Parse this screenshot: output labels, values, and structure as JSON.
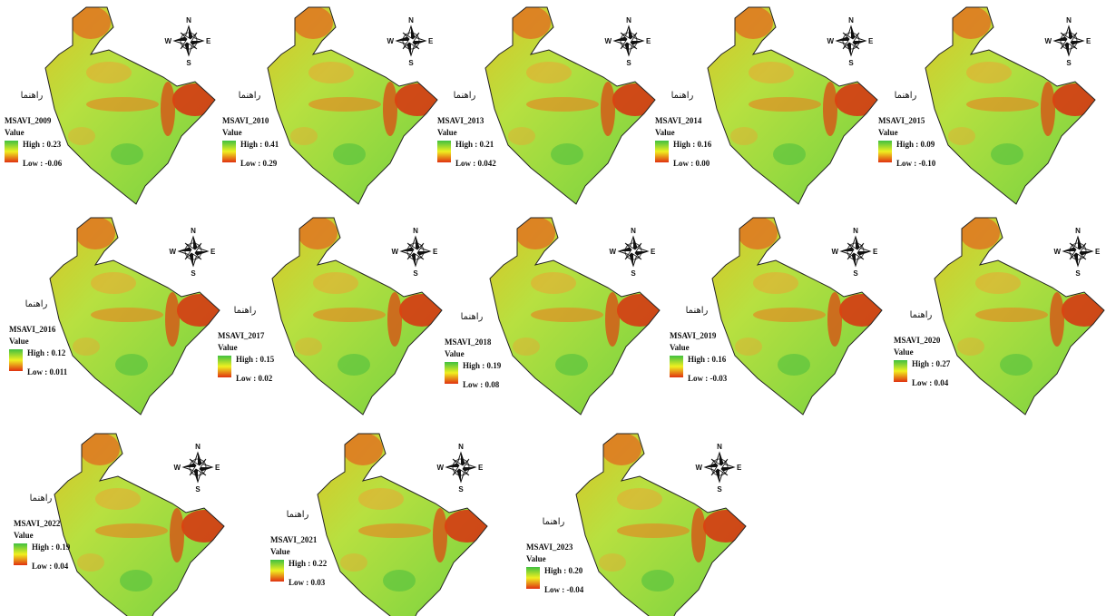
{
  "compass": {
    "n": "N",
    "e": "E",
    "s": "S",
    "w": "W"
  },
  "panels": [
    {
      "legend_title": "راهنما",
      "layer": "MSAVI_2009",
      "field": "Value",
      "high": "High : 0.23",
      "low": "Low : -0.06"
    },
    {
      "legend_title": "راهنما",
      "layer": "MSAVI_2010",
      "field": "Value",
      "high": "High : 0.41",
      "low": "Low : 0.29"
    },
    {
      "legend_title": "راهنما",
      "layer": "MSAVI_2013",
      "field": "Value",
      "high": "High : 0.21",
      "low": "Low : 0.042"
    },
    {
      "legend_title": "راهنما",
      "layer": "MSAVI_2014",
      "field": "Value",
      "high": "High : 0.16",
      "low": "Low : 0.00"
    },
    {
      "legend_title": "راهنما",
      "layer": "MSAVI_2015",
      "field": "Value",
      "high": "High : 0.09",
      "low": "Low : -0.10"
    },
    {
      "legend_title": "راهنما",
      "layer": "MSAVI_2016",
      "field": "Value",
      "high": "High : 0.12",
      "low": "Low : 0.011"
    },
    {
      "legend_title": "راهنما",
      "layer": "MSAVI_2017",
      "field": "Value",
      "high": "High : 0.15",
      "low": "Low : 0.02"
    },
    {
      "legend_title": "راهنما",
      "layer": "MSAVI_2018",
      "field": "Value",
      "high": "High : 0.19",
      "low": "Low : 0.08"
    },
    {
      "legend_title": "راهنما",
      "layer": "MSAVI_2019",
      "field": "Value",
      "high": "High : 0.16",
      "low": "Low : -0.03"
    },
    {
      "legend_title": "راهنما",
      "layer": "MSAVI_2020",
      "field": "Value",
      "high": "High : 0.27",
      "low": "Low : 0.04"
    },
    {
      "legend_title": "راهنما",
      "layer": "MSAVI_2022",
      "field": "Value",
      "high": "High : 0.19",
      "low": "Low : 0.04"
    },
    {
      "legend_title": "راهنما",
      "layer": "MSAVI_2021",
      "field": "Value",
      "high": "High : 0.22",
      "low": "Low : 0.03"
    },
    {
      "legend_title": "راهنما",
      "layer": "MSAVI_2023",
      "field": "Value",
      "high": "High : 0.20",
      "low": "Low : -0.04"
    }
  ]
}
